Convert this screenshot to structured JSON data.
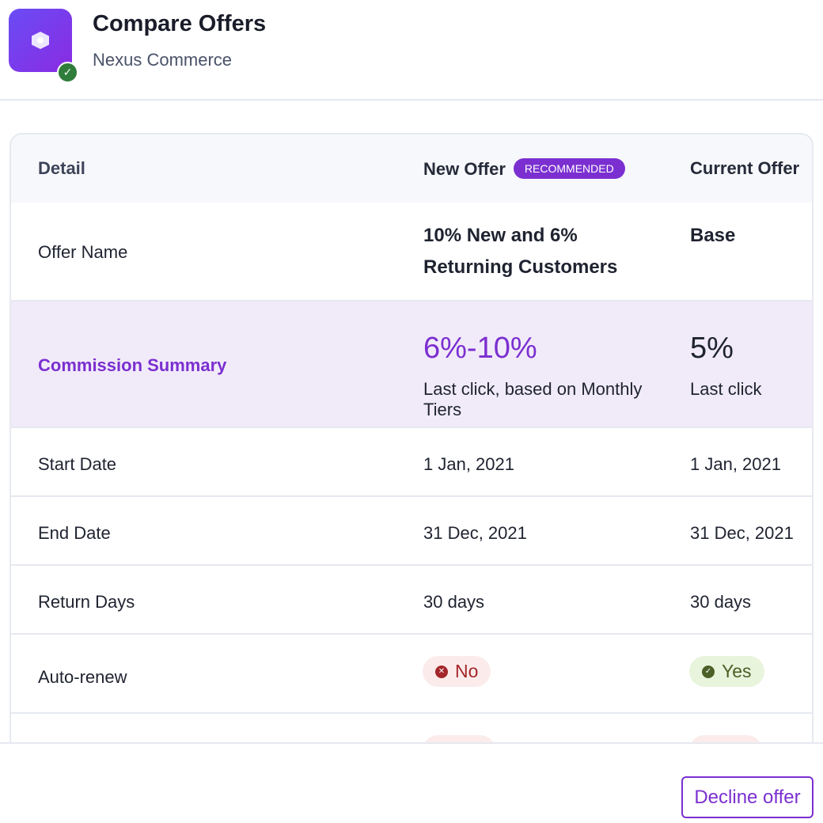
{
  "header": {
    "title": "Compare Offers",
    "subtitle": "Nexus Commerce"
  },
  "table": {
    "columns": [
      "Detail",
      "New Offer",
      "Current Offer"
    ],
    "recommended_badge": "RECOMMENDED",
    "rows": {
      "offer_name": {
        "label": "Offer Name",
        "new": "10% New and 6% Returning Customers",
        "current": "Base"
      },
      "commission": {
        "label": "Commission Summary",
        "new_rate": "6%-10%",
        "new_desc": "Last click, based on Monthly Tiers",
        "current_rate": "5%",
        "current_desc": "Last click"
      },
      "start": {
        "label": "Start Date",
        "new": "1 Jan, 2021",
        "current": "1 Jan, 2021"
      },
      "end": {
        "label": "End Date",
        "new": "31 Dec, 2021",
        "current": "31 Dec, 2021"
      },
      "return": {
        "label": "Return Days",
        "new": "30 days",
        "current": "30 days"
      },
      "autorenew": {
        "label": "Auto-renew",
        "new": "No",
        "current": "Yes"
      }
    }
  },
  "footer": {
    "decline_label": "Decline offer"
  },
  "colors": {
    "accent": "#7b2fd0",
    "commission_bg": "#f1ebf9",
    "no": "#a3262a",
    "yes": "#4a6027"
  }
}
